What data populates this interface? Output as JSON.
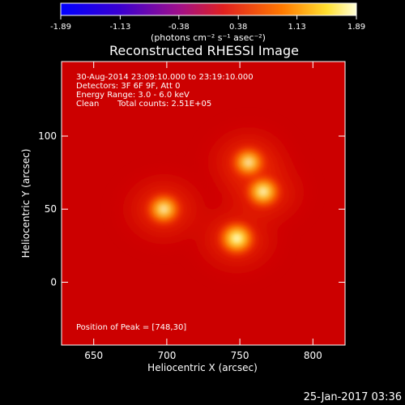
{
  "colorbar": {
    "ticks": [
      "-1.89",
      "-1.13",
      "-0.38",
      "0.38",
      "1.13",
      "1.89"
    ],
    "range": [
      -1.89,
      1.89
    ],
    "units": "(photons cm⁻² s⁻¹ asec⁻²)"
  },
  "annotations": {
    "time_range": "30-Aug-2014 23:09:10.000 to 23:19:10.000",
    "detectors": "Detectors: 3F 6F 9F, Att 0",
    "energy": "Energy Range: 3.0 - 6.0 keV",
    "clean": "Clean",
    "total_counts": "Total counts: 2.51E+05",
    "peak": "Position of Peak = [748,30]"
  },
  "timestamp": "25-Jan-2017 03:36",
  "colors": {
    "background": "#000000",
    "text": "#ffffff",
    "image_low": "#cc0000",
    "image_high": "#ffffe0"
  },
  "chart_data": {
    "type": "heatmap",
    "title": "Reconstructed RHESSI Image",
    "xlabel": "Heliocentric X (arcsec)",
    "ylabel": "Heliocentric Y (arcsec)",
    "xlim": [
      628,
      822
    ],
    "ylim": [
      -43,
      151
    ],
    "xticks": [
      650,
      700,
      750,
      800
    ],
    "yticks": [
      0,
      50,
      100
    ],
    "colormap": "red-temperature",
    "sources": [
      {
        "x": 748,
        "y": 30,
        "peak": 1.89
      },
      {
        "x": 766,
        "y": 62,
        "peak": 1.6
      },
      {
        "x": 756,
        "y": 82,
        "peak": 1.25
      },
      {
        "x": 698,
        "y": 50,
        "peak": 1.35
      }
    ]
  }
}
